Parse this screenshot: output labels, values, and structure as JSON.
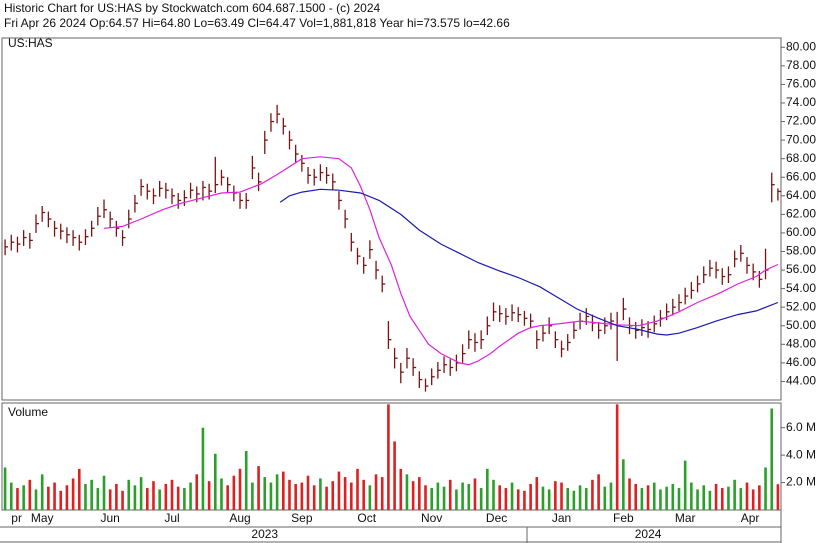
{
  "header": {
    "line1": "Historic Chart for US:HAS by Stockwatch.com 604.687.1500 - (c) 2024",
    "line2": "Fri Apr 26 2024   Op:64.57   Hi=64.80   Lo=63.49   Cl=64.47   Vol=1,881,818   Year hi=73.575   lo=42.66"
  },
  "chart_data": [
    {
      "type": "ohlc",
      "label": "US:HAS",
      "bar_color": "#7a1414",
      "xlim": [
        -1,
        251
      ],
      "ylim": [
        42,
        81
      ],
      "yticks": [
        {
          "value": 44,
          "label": "44.00"
        },
        {
          "value": 46,
          "label": "46.00"
        },
        {
          "value": 48,
          "label": "48.00"
        },
        {
          "value": 50,
          "label": "50.00"
        },
        {
          "value": 52,
          "label": "52.00"
        },
        {
          "value": 54,
          "label": "54.00"
        },
        {
          "value": 56,
          "label": "56.00"
        },
        {
          "value": 58,
          "label": "58.00"
        },
        {
          "value": 60,
          "label": "60.00"
        },
        {
          "value": 62,
          "label": "62.00"
        },
        {
          "value": 64,
          "label": "64.00"
        },
        {
          "value": 66,
          "label": "66.00"
        },
        {
          "value": 68,
          "label": "68.00"
        },
        {
          "value": 70,
          "label": "70.00"
        },
        {
          "value": 72,
          "label": "72.00"
        },
        {
          "value": 74,
          "label": "74.00"
        },
        {
          "value": 76,
          "label": "76.00"
        },
        {
          "value": 78,
          "label": "78.00"
        },
        {
          "value": 80,
          "label": "80.00"
        }
      ],
      "x": [
        0,
        2,
        4,
        6,
        8,
        10,
        12,
        14,
        16,
        18,
        20,
        22,
        24,
        26,
        28,
        30,
        32,
        34,
        36,
        38,
        40,
        42,
        44,
        46,
        48,
        50,
        52,
        54,
        56,
        58,
        60,
        62,
        64,
        66,
        68,
        70,
        72,
        74,
        76,
        78,
        80,
        82,
        84,
        86,
        88,
        90,
        92,
        94,
        96,
        98,
        100,
        102,
        104,
        106,
        108,
        110,
        112,
        114,
        116,
        118,
        120,
        122,
        124,
        126,
        128,
        130,
        132,
        134,
        136,
        138,
        140,
        142,
        144,
        146,
        148,
        150,
        152,
        154,
        156,
        158,
        160,
        162,
        164,
        166,
        168,
        170,
        172,
        174,
        176,
        178,
        180,
        182,
        184,
        186,
        188,
        190,
        192,
        194,
        196,
        198,
        200,
        202,
        204,
        206,
        208,
        210,
        212,
        214,
        216,
        218,
        220,
        222,
        224,
        226,
        228,
        230,
        232,
        234,
        236,
        238,
        240,
        242,
        244,
        246,
        248,
        250
      ],
      "high": [
        59.3,
        59.8,
        59.6,
        60.3,
        60.0,
        62.0,
        62.9,
        62.3,
        61.3,
        61.0,
        60.6,
        60.3,
        59.8,
        60.4,
        61.3,
        62.8,
        63.6,
        62.3,
        61.3,
        60.3,
        62.5,
        64.1,
        65.8,
        65.3,
        64.8,
        65.6,
        65.4,
        64.8,
        64.3,
        64.6,
        65.4,
        65.0,
        65.6,
        65.3,
        68.2,
        66.8,
        66.0,
        65.1,
        64.3,
        64.3,
        68.3,
        66.5,
        71.0,
        72.9,
        73.8,
        72.4,
        71.0,
        69.5,
        68.4,
        67.1,
        66.9,
        67.4,
        67.1,
        66.4,
        64.5,
        62.5,
        60.0,
        58.4,
        57.4,
        59.2,
        57.0,
        55.4,
        50.5,
        47.6,
        46.0,
        47.6,
        46.5,
        45.1,
        44.3,
        45.4,
        46.1,
        46.7,
        46.4,
        46.9,
        48.0,
        49.5,
        49.2,
        49.5,
        51.0,
        52.5,
        52.2,
        51.9,
        52.3,
        52.0,
        51.6,
        51.3,
        49.5,
        50.1,
        50.9,
        49.4,
        48.4,
        49.1,
        50.4,
        51.4,
        51.9,
        51.2,
        50.4,
        50.9,
        51.4,
        51.5,
        53.0,
        50.9,
        50.4,
        50.7,
        50.5,
        51.1,
        51.7,
        52.4,
        52.9,
        53.4,
        54.1,
        54.7,
        55.4,
        56.4,
        57.1,
        56.9,
        56.2,
        56.4,
        58.1,
        58.7,
        57.4,
        56.7,
        55.9,
        58.3,
        66.5,
        64.8
      ],
      "low": [
        57.6,
        58.1,
        57.9,
        58.6,
        58.3,
        60.0,
        61.2,
        60.6,
        59.6,
        59.3,
        58.9,
        58.6,
        58.1,
        58.7,
        59.6,
        60.8,
        61.6,
        60.6,
        59.6,
        58.6,
        60.5,
        62.2,
        64.0,
        63.6,
        63.1,
        63.9,
        63.7,
        63.1,
        62.6,
        62.9,
        63.7,
        63.3,
        63.5,
        63.6,
        64.3,
        65.1,
        64.3,
        63.4,
        62.6,
        62.6,
        65.8,
        64.5,
        68.5,
        70.9,
        71.8,
        70.6,
        69.0,
        67.5,
        66.6,
        65.3,
        65.1,
        65.6,
        65.3,
        64.6,
        62.5,
        60.5,
        58.0,
        56.6,
        55.6,
        57.2,
        55.0,
        53.6,
        47.5,
        45.4,
        43.8,
        45.4,
        44.6,
        43.3,
        42.9,
        43.6,
        44.3,
        44.9,
        44.6,
        45.1,
        46.0,
        47.5,
        47.2,
        47.5,
        49.0,
        50.5,
        50.4,
        50.1,
        50.5,
        50.4,
        50.0,
        49.7,
        47.5,
        48.3,
        49.1,
        47.6,
        46.6,
        47.3,
        48.6,
        49.6,
        50.1,
        49.4,
        48.6,
        49.1,
        49.6,
        46.2,
        50.6,
        49.1,
        48.6,
        48.9,
        48.7,
        49.3,
        49.9,
        50.6,
        51.1,
        51.6,
        52.3,
        52.9,
        53.6,
        54.6,
        55.3,
        55.1,
        54.4,
        54.6,
        56.3,
        56.9,
        55.6,
        54.9,
        54.1,
        55.0,
        63.3,
        63.49
      ],
      "close": [
        58.5,
        59,
        58.8,
        59.5,
        59.2,
        61,
        62.2,
        61.5,
        60.5,
        60.2,
        59.8,
        59.5,
        59,
        59.6,
        60.5,
        61.8,
        62.5,
        61.5,
        60.5,
        59.5,
        61.5,
        63.2,
        65,
        64.5,
        64,
        64.8,
        64.6,
        64,
        63.5,
        63.8,
        64.6,
        64.2,
        64.9,
        64.5,
        65.2,
        66,
        65.2,
        64.3,
        63.5,
        63.5,
        67,
        65.5,
        70,
        72,
        72.8,
        71.5,
        70,
        68.5,
        67.5,
        66.2,
        66,
        66.5,
        66.2,
        65.5,
        63.5,
        61.5,
        59,
        57.5,
        56.5,
        58.2,
        56,
        54.5,
        48.5,
        46.5,
        45,
        46.5,
        45.5,
        44.2,
        43.5,
        44.5,
        45.2,
        45.8,
        45.5,
        46,
        47,
        48.5,
        48.2,
        48.5,
        50,
        51.5,
        51.3,
        51,
        51.4,
        51.2,
        50.8,
        50.5,
        48.5,
        49.2,
        50,
        48.5,
        47.5,
        48.2,
        49.5,
        50.5,
        51,
        50.3,
        49.5,
        50,
        50.5,
        50,
        51.8,
        50,
        49.5,
        49.8,
        49.6,
        50.2,
        50.8,
        51.5,
        52,
        52.5,
        53.2,
        53.8,
        54.5,
        55.5,
        56.2,
        56,
        55.3,
        55.5,
        57.2,
        57.8,
        56.5,
        55.8,
        55,
        56,
        65.2,
        64.47
      ],
      "lines": [
        {
          "color": "#e020e0",
          "x": [
            32,
            38,
            44,
            51,
            57,
            64,
            70,
            76,
            83,
            89,
            96,
            102,
            108,
            112,
            115,
            118,
            121,
            125,
            128,
            131,
            134,
            137,
            141,
            147,
            150,
            153,
            157,
            160,
            163,
            166,
            170,
            173,
            179,
            186,
            192,
            198,
            205,
            211,
            218,
            224,
            231,
            237,
            243,
            246,
            250
          ],
          "values": [
            60.5,
            60.7,
            61.5,
            62.5,
            63.2,
            63.8,
            64.3,
            64.4,
            65.3,
            66.5,
            68,
            68.2,
            68,
            67,
            65,
            62.5,
            59.5,
            56.5,
            53.5,
            51,
            49.5,
            48,
            47,
            46,
            45.8,
            46.2,
            47,
            47.8,
            48.5,
            49.2,
            49.8,
            50,
            50.2,
            50.5,
            50.3,
            50.1,
            50,
            50.5,
            51.5,
            52.5,
            53.5,
            54.5,
            55.3,
            56,
            56.6
          ]
        },
        {
          "color": "#1a1ab4",
          "x": [
            89,
            92,
            96,
            102,
            108,
            115,
            121,
            128,
            134,
            141,
            147,
            153,
            160,
            166,
            173,
            179,
            185,
            192,
            198,
            205,
            211,
            214,
            218,
            224,
            230,
            237,
            243,
            250
          ],
          "values": [
            63.3,
            64,
            64.4,
            64.7,
            64.6,
            64.3,
            63.5,
            62,
            60.3,
            58.8,
            57.8,
            56.8,
            55.9,
            55.2,
            54.2,
            53,
            51.8,
            50.8,
            50,
            49.6,
            49.1,
            49,
            49.2,
            49.8,
            50.5,
            51.2,
            51.6,
            52.5
          ]
        }
      ]
    },
    {
      "type": "volume",
      "title": "Volume",
      "up_color": "#2aa02a",
      "down_color": "#dd2020",
      "xlim": [
        -1,
        251
      ],
      "ylim": [
        0,
        7800000
      ],
      "yticks": [
        {
          "value": 2000000,
          "label": "2.0 M"
        },
        {
          "value": 4000000,
          "label": "4.0 M"
        },
        {
          "value": 6000000,
          "label": "6.0 M"
        }
      ],
      "values": [
        3100000,
        2000000,
        1600000,
        1800000,
        2200000,
        1500000,
        2600000,
        1700000,
        2000000,
        1400000,
        1800000,
        2300000,
        3000000,
        1900000,
        2200000,
        1600000,
        2500000,
        1500000,
        1900000,
        1400000,
        2200000,
        1800000,
        2400000,
        1600000,
        2100000,
        1500000,
        1900000,
        2200000,
        1700000,
        1600000,
        2000000,
        2600000,
        6000000,
        2100000,
        4100000,
        2300000,
        1800000,
        2500000,
        3000000,
        4300000,
        2000000,
        3200000,
        2400000,
        2000000,
        2600000,
        2800000,
        2200000,
        1900000,
        2000000,
        2500000,
        1800000,
        2300000,
        1700000,
        2100000,
        2800000,
        2400000,
        2000000,
        3000000,
        2200000,
        1800000,
        2600000,
        2400000,
        7700000,
        5000000,
        3000000,
        2600000,
        2100000,
        2400000,
        1800000,
        1600000,
        2000000,
        1700000,
        2200000,
        1500000,
        2000000,
        1900000,
        2300000,
        1600000,
        3000000,
        2200000,
        1800000,
        1600000,
        2000000,
        1500000,
        1400000,
        1900000,
        2400000,
        1700000,
        1500000,
        2100000,
        2000000,
        1600000,
        1400000,
        1800000,
        1600000,
        2200000,
        2600000,
        1700000,
        2000000,
        7700000,
        3700000,
        2300000,
        1900000,
        1600000,
        1800000,
        2000000,
        1500000,
        1700000,
        1900000,
        1600000,
        3600000,
        2000000,
        1500000,
        1800000,
        1400000,
        1900000,
        1600000,
        1700000,
        2200000,
        1600000,
        2000000,
        1500000,
        1800000,
        3100000,
        7400000,
        1881818
      ],
      "xticks": [
        {
          "value": 2,
          "label": "pr"
        },
        {
          "value": 12,
          "label": "May"
        },
        {
          "value": 34,
          "label": "Jun"
        },
        {
          "value": 54,
          "label": "Jul"
        },
        {
          "value": 76,
          "label": "Aug"
        },
        {
          "value": 96,
          "label": "Sep"
        },
        {
          "value": 117,
          "label": "Oct"
        },
        {
          "value": 138,
          "label": "Nov"
        },
        {
          "value": 159,
          "label": "Dec"
        },
        {
          "value": 180,
          "label": "Jan"
        },
        {
          "value": 200,
          "label": "Feb"
        },
        {
          "value": 220,
          "label": "Mar"
        },
        {
          "value": 241,
          "label": "Apr"
        }
      ],
      "year_labels": [
        {
          "value": 84,
          "label": "2023"
        },
        {
          "value": 208,
          "label": "2024"
        }
      ]
    }
  ]
}
